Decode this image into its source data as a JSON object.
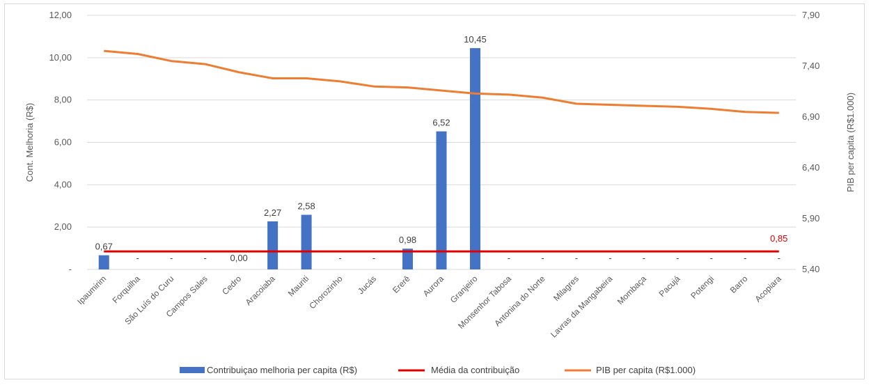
{
  "chart_data": {
    "type": "bar",
    "categories": [
      "Ipaumirim",
      "Forquilha",
      "São Luís do Curu",
      "Campos Sales",
      "Cedro",
      "Aracoiaba",
      "Mauriti",
      "Chorozinho",
      "Jucás",
      "Ererê",
      "Aurora",
      "Granjeiro",
      "Monsenhor Tabosa",
      "Antonina do Norte",
      "Milagres",
      "Lavras da Mangabeira",
      "Mombaça",
      "Pacujá",
      "Potengi",
      "Barro",
      "Acopiara"
    ],
    "series": [
      {
        "name": "Contribuiçao melhoria per capita (R$)",
        "type": "bar",
        "axis": "left",
        "color": "#4472c4",
        "values": [
          0.67,
          0,
          0,
          0,
          0.0,
          2.27,
          2.58,
          0,
          0,
          0.98,
          6.52,
          10.45,
          0,
          0,
          0,
          0,
          0,
          0,
          0,
          0,
          0
        ],
        "data_labels": [
          "0,67",
          "-",
          "-",
          "-",
          "0,00",
          "2,27",
          "2,58",
          "-",
          "-",
          "0,98",
          "6,52",
          "10,45",
          "-",
          "-",
          "-",
          "-",
          "-",
          "-",
          "-",
          "-",
          "-"
        ]
      },
      {
        "name": "Média da contribuição",
        "type": "line",
        "axis": "left",
        "color": "#e00000",
        "values": [
          0.85,
          0.85,
          0.85,
          0.85,
          0.85,
          0.85,
          0.85,
          0.85,
          0.85,
          0.85,
          0.85,
          0.85,
          0.85,
          0.85,
          0.85,
          0.85,
          0.85,
          0.85,
          0.85,
          0.85,
          0.85
        ],
        "end_label": "0,85"
      },
      {
        "name": "PIB per capita (R$1.000)",
        "type": "line",
        "axis": "right",
        "color": "#ed7d31",
        "values": [
          7.55,
          7.52,
          7.45,
          7.42,
          7.34,
          7.28,
          7.28,
          7.25,
          7.2,
          7.19,
          7.16,
          7.13,
          7.12,
          7.09,
          7.03,
          7.02,
          7.01,
          7.0,
          6.98,
          6.95,
          6.94
        ]
      }
    ],
    "ylabel": "Cont. Melhoria  (R$)",
    "y2label": "PIB per capita (R$1.000)",
    "ylim": [
      0,
      12
    ],
    "y2lim": [
      5.4,
      7.9
    ],
    "yticks": [
      "-",
      "2,00",
      "4,00",
      "6,00",
      "8,00",
      "10,00",
      "12,00"
    ],
    "y2ticks": [
      "5,40",
      "5,90",
      "6,40",
      "6,90",
      "7,40",
      "7,90"
    ],
    "grid": true,
    "legend": "bottom"
  }
}
